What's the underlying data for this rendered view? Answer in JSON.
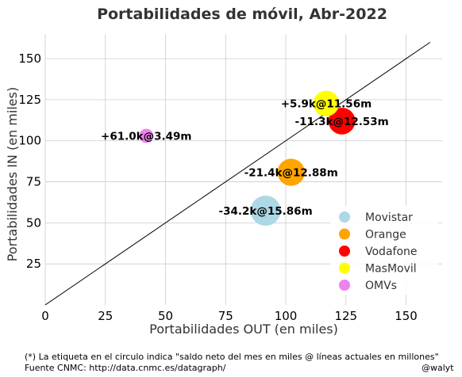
{
  "chart_data": {
    "type": "scatter",
    "title": "Portabilidades de móvil, Abr-2022",
    "xlabel": "Portabilidades OUT (en miles)",
    "ylabel": "Portabilidades IN (en miles)",
    "xlim": [
      0,
      165
    ],
    "ylim": [
      0,
      165
    ],
    "xticks": [
      0,
      25,
      50,
      75,
      100,
      125,
      150
    ],
    "yticks": [
      25,
      50,
      75,
      100,
      125,
      150
    ],
    "grid": true,
    "legend_position": "bottom-right",
    "reference_line": {
      "from": [
        0,
        0
      ],
      "to": [
        160,
        160
      ],
      "color": "#000000"
    },
    "series": [
      {
        "name": "Movistar",
        "color": "#add8e6",
        "x": 91.6,
        "y": 57.4,
        "label": "-34.2k@15.86m",
        "lines_millions": 15.86
      },
      {
        "name": "Orange",
        "color": "#ffa500",
        "x": 102.2,
        "y": 80.8,
        "label": "-21.4k@12.88m",
        "lines_millions": 12.88
      },
      {
        "name": "Vodafone",
        "color": "#ff0000",
        "x": 123.3,
        "y": 112.0,
        "label": "-11.3k@12.53m",
        "lines_millions": 12.53
      },
      {
        "name": "MasMovil",
        "color": "#ffff00",
        "x": 116.8,
        "y": 122.7,
        "label": "+5.9k@11.56m",
        "lines_millions": 11.56
      },
      {
        "name": "OMVs",
        "color": "#ee82ee",
        "x": 42.0,
        "y": 103.0,
        "label": "+61.0k@3.49m",
        "lines_millions": 3.49
      }
    ]
  },
  "footer": {
    "note": "(*) La etiqueta en el circulo indica \"saldo neto del mes en miles @ líneas actuales en millones\"",
    "source": "Fuente CNMC: http://data.cnmc.es/datagraph/",
    "credit": "@walyt"
  }
}
